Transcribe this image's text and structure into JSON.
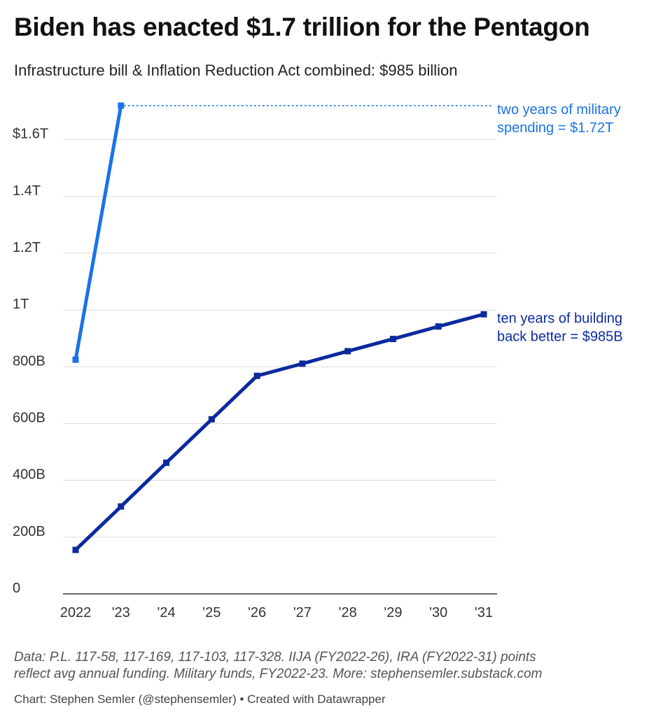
{
  "chart_data": {
    "type": "line",
    "title": "Biden has enacted $1.7 trillion for the Pentagon",
    "subtitle": "Infrastructure bill & Inflation Reduction Act combined: $985 billion",
    "categories": [
      "2022",
      "'23",
      "'24",
      "'25",
      "'26",
      "'27",
      "'28",
      "'29",
      "'30",
      "'31"
    ],
    "yticks": [
      {
        "value": 0,
        "label": "0"
      },
      {
        "value": 200,
        "label": "200B"
      },
      {
        "value": 400,
        "label": "400B"
      },
      {
        "value": 600,
        "label": "600B"
      },
      {
        "value": 800,
        "label": "800B"
      },
      {
        "value": 1000,
        "label": "1T"
      },
      {
        "value": 1200,
        "label": "1.2T"
      },
      {
        "value": 1400,
        "label": "1.4T"
      },
      {
        "value": 1600,
        "label": "$1.6T"
      }
    ],
    "y_unit": "billions of dollars",
    "ylim": [
      0,
      1720
    ],
    "grid": true,
    "series": [
      {
        "id": "military",
        "color": "#1a73e8",
        "values": [
          825,
          1720,
          null,
          null,
          null,
          null,
          null,
          null,
          null,
          null
        ],
        "annotation": [
          "two years of military",
          "spending = $1.72T"
        ]
      },
      {
        "id": "bbb",
        "color": "#0b2a9e",
        "values": [
          155,
          308,
          462,
          615,
          768,
          811,
          855,
          898,
          942,
          985
        ],
        "annotation": [
          "ten years of building",
          "back better = $985B"
        ]
      }
    ]
  },
  "notes": {
    "line1": "Data: P.L. 117-58, 117-169, 117-103, 117-328. IIJA (FY2022-26), IRA (FY2022-31) points",
    "line2": "reflect avg annual funding. Military funds, FY2022-23. More: stephensemler.substack.com"
  },
  "credit": "Chart: Stephen Semler (@stephensemler) • Created with Datawrapper"
}
